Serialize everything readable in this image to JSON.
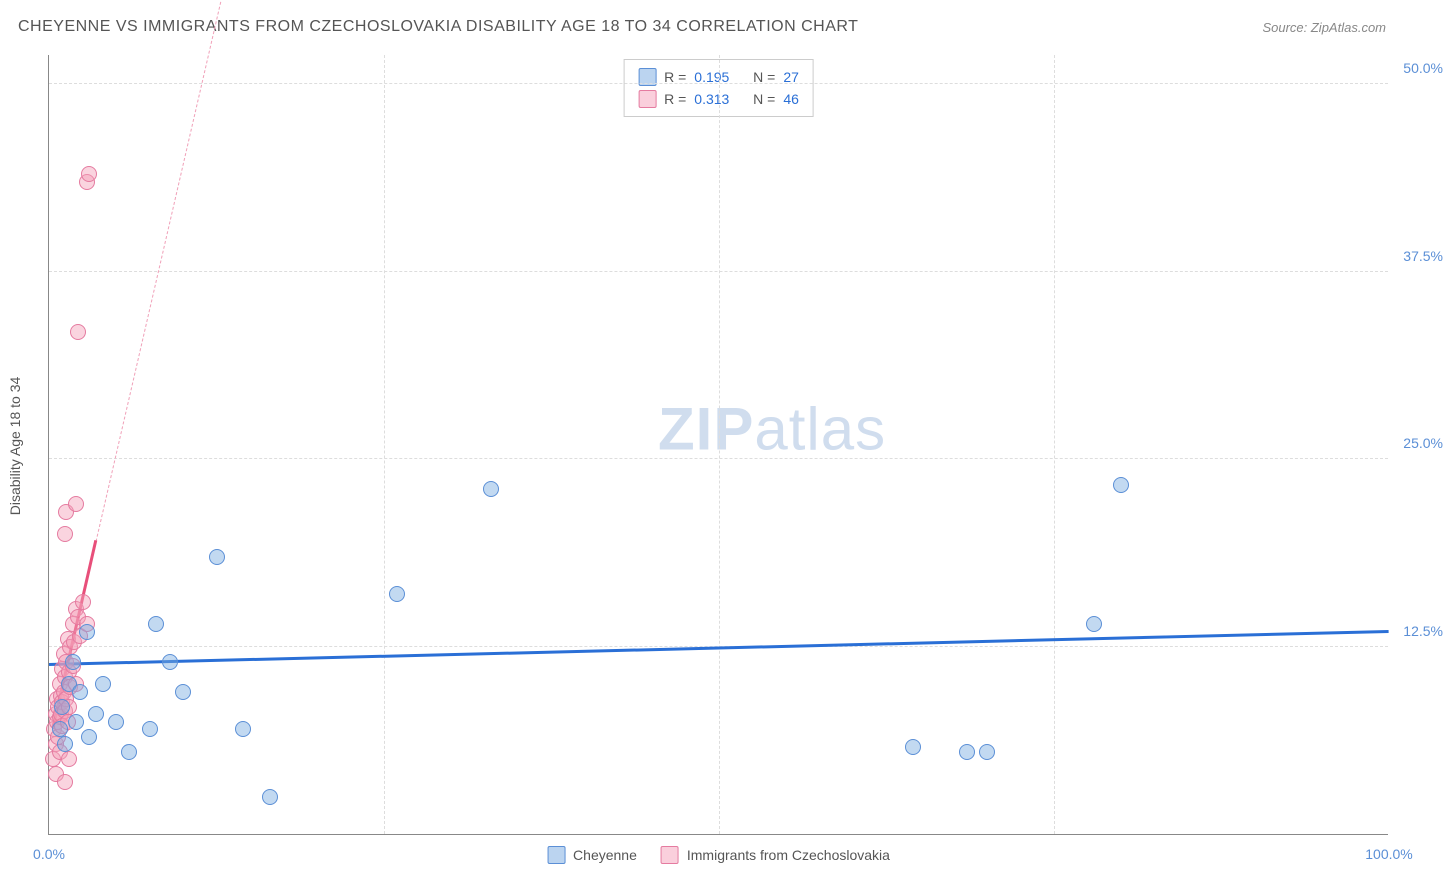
{
  "title": "CHEYENNE VS IMMIGRANTS FROM CZECHOSLOVAKIA DISABILITY AGE 18 TO 34 CORRELATION CHART",
  "source": "Source: ZipAtlas.com",
  "ylabel": "Disability Age 18 to 34",
  "watermark_zip": "ZIP",
  "watermark_atlas": "atlas",
  "chart": {
    "type": "scatter",
    "xlim": [
      0,
      100
    ],
    "ylim": [
      0,
      52
    ],
    "yticks": [
      {
        "v": 12.5,
        "label": "12.5%"
      },
      {
        "v": 25.0,
        "label": "25.0%"
      },
      {
        "v": 37.5,
        "label": "37.5%"
      },
      {
        "v": 50.0,
        "label": "50.0%"
      }
    ],
    "xticks": [
      {
        "v": 0,
        "label": "0.0%"
      },
      {
        "v": 25,
        "label": ""
      },
      {
        "v": 50,
        "label": ""
      },
      {
        "v": 75,
        "label": ""
      },
      {
        "v": 100,
        "label": "100.0%"
      }
    ],
    "series_a": {
      "name": "Cheyenne",
      "color_fill": "rgba(120,170,225,0.45)",
      "color_stroke": "#5b8fd6",
      "R": "0.195",
      "N": "27",
      "trend": {
        "x1": 0,
        "y1": 11.2,
        "x2": 100,
        "y2": 13.4,
        "color": "#2a6fd6"
      },
      "points": [
        {
          "x": 0.8,
          "y": 7.0
        },
        {
          "x": 1.0,
          "y": 8.5
        },
        {
          "x": 1.2,
          "y": 6.0
        },
        {
          "x": 1.5,
          "y": 10.0
        },
        {
          "x": 1.8,
          "y": 11.5
        },
        {
          "x": 2.0,
          "y": 7.5
        },
        {
          "x": 2.3,
          "y": 9.5
        },
        {
          "x": 2.8,
          "y": 13.5
        },
        {
          "x": 3.0,
          "y": 6.5
        },
        {
          "x": 3.5,
          "y": 8.0
        },
        {
          "x": 4.0,
          "y": 10.0
        },
        {
          "x": 5.0,
          "y": 7.5
        },
        {
          "x": 6.0,
          "y": 5.5
        },
        {
          "x": 7.5,
          "y": 7.0
        },
        {
          "x": 8.0,
          "y": 14.0
        },
        {
          "x": 9.0,
          "y": 11.5
        },
        {
          "x": 10.0,
          "y": 9.5
        },
        {
          "x": 12.5,
          "y": 18.5
        },
        {
          "x": 14.5,
          "y": 7.0
        },
        {
          "x": 16.5,
          "y": 2.5
        },
        {
          "x": 26.0,
          "y": 16.0
        },
        {
          "x": 33.0,
          "y": 23.0
        },
        {
          "x": 64.5,
          "y": 5.8
        },
        {
          "x": 68.5,
          "y": 5.5
        },
        {
          "x": 70.0,
          "y": 5.5
        },
        {
          "x": 78.0,
          "y": 14.0
        },
        {
          "x": 80.0,
          "y": 23.3
        }
      ]
    },
    "series_b": {
      "name": "Immigrants from Czechoslovakia",
      "color_fill": "rgba(245,160,185,0.45)",
      "color_stroke": "#e57ba0",
      "R": "0.313",
      "N": "46",
      "trend_solid": {
        "x1": 0.3,
        "y1": 7.0,
        "x2": 3.5,
        "y2": 19.5,
        "color": "#e84f7a"
      },
      "trend_dash": {
        "x1": 3.5,
        "y1": 19.5,
        "x2": 14.5,
        "y2": 62.0,
        "color": "#f0a0b8"
      },
      "points": [
        {
          "x": 0.3,
          "y": 5.0
        },
        {
          "x": 0.4,
          "y": 7.0
        },
        {
          "x": 0.5,
          "y": 8.0
        },
        {
          "x": 0.5,
          "y": 6.0
        },
        {
          "x": 0.6,
          "y": 9.0
        },
        {
          "x": 0.6,
          "y": 7.5
        },
        {
          "x": 0.7,
          "y": 8.5
        },
        {
          "x": 0.7,
          "y": 6.5
        },
        {
          "x": 0.8,
          "y": 10.0
        },
        {
          "x": 0.8,
          "y": 7.8
        },
        {
          "x": 0.9,
          "y": 9.2
        },
        {
          "x": 0.9,
          "y": 8.0
        },
        {
          "x": 1.0,
          "y": 11.0
        },
        {
          "x": 1.0,
          "y": 8.8
        },
        {
          "x": 1.0,
          "y": 7.2
        },
        {
          "x": 1.1,
          "y": 9.5
        },
        {
          "x": 1.1,
          "y": 12.0
        },
        {
          "x": 1.2,
          "y": 10.5
        },
        {
          "x": 1.2,
          "y": 8.2
        },
        {
          "x": 1.3,
          "y": 11.5
        },
        {
          "x": 1.3,
          "y": 9.0
        },
        {
          "x": 1.4,
          "y": 13.0
        },
        {
          "x": 1.4,
          "y": 7.5
        },
        {
          "x": 1.5,
          "y": 10.8
        },
        {
          "x": 1.5,
          "y": 8.5
        },
        {
          "x": 1.6,
          "y": 12.5
        },
        {
          "x": 1.6,
          "y": 9.8
        },
        {
          "x": 1.8,
          "y": 14.0
        },
        {
          "x": 1.8,
          "y": 11.2
        },
        {
          "x": 1.9,
          "y": 12.8
        },
        {
          "x": 2.0,
          "y": 15.0
        },
        {
          "x": 2.0,
          "y": 10.0
        },
        {
          "x": 2.2,
          "y": 14.5
        },
        {
          "x": 2.3,
          "y": 13.2
        },
        {
          "x": 2.5,
          "y": 15.5
        },
        {
          "x": 2.8,
          "y": 14.0
        },
        {
          "x": 0.5,
          "y": 4.0
        },
        {
          "x": 0.8,
          "y": 5.5
        },
        {
          "x": 1.2,
          "y": 3.5
        },
        {
          "x": 1.5,
          "y": 5.0
        },
        {
          "x": 1.2,
          "y": 20.0
        },
        {
          "x": 1.3,
          "y": 21.5
        },
        {
          "x": 2.0,
          "y": 22.0
        },
        {
          "x": 2.2,
          "y": 33.5
        },
        {
          "x": 2.8,
          "y": 43.5
        },
        {
          "x": 3.0,
          "y": 44.0
        }
      ]
    },
    "legend_top": {
      "r_label": "R =",
      "n_label": "N ="
    },
    "legend_bottom": [
      {
        "key": "a"
      },
      {
        "key": "b"
      }
    ]
  }
}
